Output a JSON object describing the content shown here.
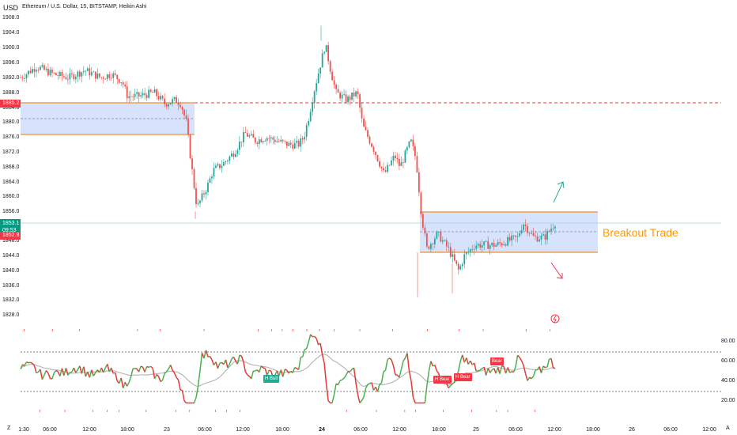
{
  "header": {
    "currency": "USD",
    "symbol": "Ethereum / U.S. Dollar, 15, BITSTAMP, Heikin Ashi"
  },
  "price_axis": {
    "ticks": [
      "1908.0",
      "1904.0",
      "1900.0",
      "1896.0",
      "1892.0",
      "1888.0",
      "1884.0",
      "1880.0",
      "1876.0",
      "1872.0",
      "1868.0",
      "1864.0",
      "1860.0",
      "1856.0",
      "1848.0",
      "1844.0",
      "1840.0",
      "1836.0",
      "1832.0",
      "1828.0"
    ],
    "resistance_tag": "1885.2",
    "last_price_tag": "1853.1",
    "countdown": "09:53",
    "low_tag": "1852.8"
  },
  "time_axis": {
    "ticks": [
      {
        "label": "1:30",
        "bold": false
      },
      {
        "label": "06:00",
        "bold": false
      },
      {
        "label": "12:00",
        "bold": false
      },
      {
        "label": "18:00",
        "bold": false
      },
      {
        "label": "23",
        "bold": false
      },
      {
        "label": "06:00",
        "bold": false
      },
      {
        "label": "12:00",
        "bold": false
      },
      {
        "label": "18:00",
        "bold": false
      },
      {
        "label": "24",
        "bold": true
      },
      {
        "label": "06:00",
        "bold": false
      },
      {
        "label": "12:00",
        "bold": false
      },
      {
        "label": "18:00",
        "bold": false
      },
      {
        "label": "25",
        "bold": false
      },
      {
        "label": "06:00",
        "bold": false
      },
      {
        "label": "12:00",
        "bold": false
      },
      {
        "label": "18:00",
        "bold": false
      },
      {
        "label": "26",
        "bold": false
      },
      {
        "label": "06:00",
        "bold": false
      },
      {
        "label": "12:00",
        "bold": false
      }
    ]
  },
  "annotation": {
    "breakout_label": "Breakout Trade"
  },
  "oscillator": {
    "ticks": [
      "80.00",
      "60.00",
      "40.00",
      "20.00"
    ],
    "signals": {
      "bull": "H Bull",
      "bear1": "H Bear",
      "bear2": "H Bear",
      "bear3": "Bear"
    }
  },
  "corners": {
    "left": "Z",
    "right": "A"
  },
  "colors": {
    "up": "#26a69a",
    "down": "#ef5350",
    "zone_fill": "#c7d8ff",
    "zone_edge": "#f59e0b",
    "resistance": "#f23645"
  },
  "icons": [
    "arrow-up-icon",
    "arrow-down-icon",
    "flash-icon"
  ],
  "chart_data": {
    "type": "candlestick",
    "title": "Ethereum / U.S. Dollar, 15, BITSTAMP, Heikin Ashi",
    "ylim": [
      1826,
      1910
    ],
    "path": [
      [
        0,
        1892
      ],
      [
        3,
        1895
      ],
      [
        6,
        1893
      ],
      [
        9,
        1892
      ],
      [
        12,
        1894
      ],
      [
        15,
        1892
      ],
      [
        17,
        1893
      ],
      [
        19,
        1891
      ],
      [
        20,
        1887
      ],
      [
        22,
        1887
      ],
      [
        25,
        1888
      ],
      [
        27,
        1885
      ],
      [
        29,
        1886
      ],
      [
        30,
        1885
      ],
      [
        31,
        1880
      ],
      [
        32,
        1868
      ],
      [
        33,
        1857
      ],
      [
        35,
        1863
      ],
      [
        36,
        1867
      ],
      [
        38,
        1869
      ],
      [
        40,
        1872
      ],
      [
        42,
        1877
      ],
      [
        44,
        1875
      ],
      [
        46,
        1876
      ],
      [
        48,
        1875
      ],
      [
        50,
        1874
      ],
      [
        52,
        1874
      ],
      [
        53,
        1876
      ],
      [
        54,
        1882
      ],
      [
        55,
        1889
      ],
      [
        57,
        1901
      ],
      [
        58,
        1894
      ],
      [
        59,
        1888
      ],
      [
        61,
        1886
      ],
      [
        63,
        1888
      ],
      [
        64,
        1879
      ],
      [
        66,
        1873
      ],
      [
        68,
        1866
      ],
      [
        70,
        1871
      ],
      [
        71,
        1868
      ],
      [
        73,
        1875
      ],
      [
        74,
        1870
      ],
      [
        75,
        1855
      ],
      [
        76,
        1846
      ],
      [
        78,
        1850
      ],
      [
        80,
        1846
      ],
      [
        82,
        1840
      ],
      [
        83,
        1844
      ],
      [
        85,
        1847
      ],
      [
        87,
        1847
      ],
      [
        89,
        1847
      ],
      [
        91,
        1848
      ],
      [
        93,
        1849
      ],
      [
        94,
        1853
      ],
      [
        96,
        1849
      ],
      [
        98,
        1849
      ],
      [
        100,
        1853
      ]
    ],
    "resistance": 1885.2,
    "zones": [
      {
        "y_low": 1876.5,
        "y_high": 1885.3,
        "mid": 1880.8
      },
      {
        "y_low": 1845.5,
        "y_high": 1856.4,
        "mid": 1851.0
      }
    ]
  }
}
